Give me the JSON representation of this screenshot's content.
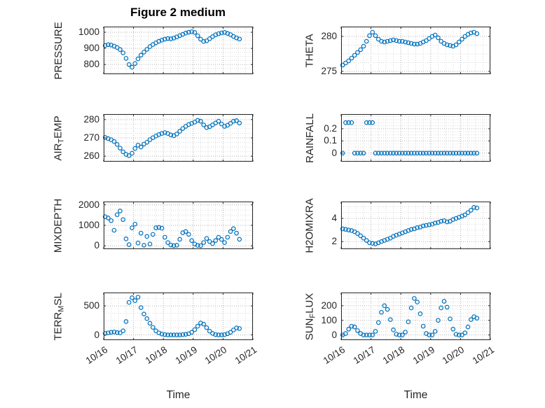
{
  "title": "Figure 2 medium",
  "chart_data": {
    "type": "scatter",
    "xlabel": "Time",
    "x_ticks": [
      "10/16",
      "10/17",
      "10/18",
      "10/19",
      "10/20",
      "10/21"
    ],
    "x_tick_positions": [
      0,
      1,
      2,
      3,
      4,
      5
    ],
    "xlim_days": [
      0,
      5
    ],
    "marker": {
      "shape": "open-circle",
      "color": "#0072BD"
    },
    "style": {
      "axis_color": "#262626",
      "grid_color": "#b2b2b2",
      "minor_grid_color": "#dadada"
    },
    "x_days": [
      0.05,
      0.15,
      0.25,
      0.35,
      0.45,
      0.55,
      0.65,
      0.75,
      0.85,
      0.95,
      1.05,
      1.15,
      1.25,
      1.35,
      1.45,
      1.55,
      1.65,
      1.75,
      1.85,
      1.95,
      2.05,
      2.15,
      2.25,
      2.35,
      2.45,
      2.55,
      2.65,
      2.75,
      2.85,
      2.95,
      3.05,
      3.15,
      3.25,
      3.35,
      3.45,
      3.55,
      3.65,
      3.75,
      3.85,
      3.95,
      4.05,
      4.15,
      4.25,
      4.35,
      4.45,
      4.55
    ],
    "subplots": [
      {
        "key": "pressure",
        "name": "PRESSURE",
        "ylabel_parts": {
          "pre": "PRESSURE",
          "sub": "",
          "post": ""
        },
        "yticks": [
          800,
          900,
          1000
        ],
        "ytick_labels": [
          "800",
          "900",
          "1000"
        ],
        "ylim": [
          740,
          1035
        ],
        "values": [
          918,
          923,
          921,
          914,
          905,
          893,
          872,
          838,
          800,
          783,
          806,
          835,
          858,
          877,
          894,
          911,
          924,
          934,
          944,
          951,
          957,
          961,
          959,
          964,
          971,
          979,
          987,
          995,
          1000,
          1003,
          999,
          978,
          957,
          943,
          947,
          960,
          973,
          984,
          991,
          996,
          999,
          993,
          985,
          974,
          965,
          958
        ]
      },
      {
        "key": "theta",
        "name": "THETA",
        "ylabel_parts": {
          "pre": "THETA",
          "sub": "",
          "post": ""
        },
        "yticks": [
          275,
          280
        ],
        "ytick_labels": [
          "275",
          "280"
        ],
        "ylim": [
          274.6,
          281.4
        ],
        "values": [
          275.9,
          276.2,
          276.5,
          276.9,
          277.3,
          277.7,
          278.1,
          278.6,
          279.3,
          280.1,
          280.6,
          280.1,
          279.6,
          279.3,
          279.2,
          279.3,
          279.4,
          279.5,
          279.4,
          279.3,
          279.3,
          279.2,
          279.1,
          279.0,
          278.9,
          278.9,
          279.0,
          279.2,
          279.4,
          279.7,
          280.0,
          280.2,
          279.8,
          279.3,
          279.0,
          278.8,
          278.7,
          278.6,
          278.8,
          279.2,
          279.6,
          280.0,
          280.3,
          280.5,
          280.6,
          280.4
        ]
      },
      {
        "key": "airtemp",
        "name": "AIR_TEMP",
        "ylabel_parts": {
          "pre": "AIR",
          "sub": "T",
          "post": "EMP"
        },
        "yticks": [
          260,
          270,
          280
        ],
        "ytick_labels": [
          "260",
          "270",
          "280"
        ],
        "ylim": [
          257,
          283
        ],
        "values": [
          270.2,
          269.6,
          269.0,
          268.0,
          266.4,
          264.4,
          262.4,
          261.0,
          260.3,
          261.6,
          264.2,
          266.0,
          265.0,
          266.6,
          267.6,
          269.0,
          270.1,
          271.0,
          271.8,
          272.4,
          272.9,
          272.4,
          271.6,
          271.2,
          272.1,
          273.6,
          275.1,
          276.3,
          277.3,
          277.9,
          278.6,
          279.6,
          279.1,
          277.1,
          275.6,
          276.1,
          277.1,
          278.1,
          279.1,
          277.6,
          276.3,
          276.9,
          277.9,
          279.1,
          279.4,
          278.1
        ]
      },
      {
        "key": "rainfall",
        "name": "RAINFALL",
        "ylabel_parts": {
          "pre": "RAINFALL",
          "sub": "",
          "post": ""
        },
        "yticks": [
          0,
          0.1,
          0.2
        ],
        "ytick_labels": [
          "0",
          "0.1",
          "0.2"
        ],
        "ylim": [
          -0.07,
          0.32
        ],
        "values": [
          0,
          0.25,
          0.25,
          0.25,
          0,
          0,
          0,
          0,
          0.25,
          0.25,
          0.25,
          0,
          0,
          0,
          0,
          0,
          0,
          0,
          0,
          0,
          0,
          0,
          0,
          0,
          0,
          0,
          0,
          0,
          0,
          0,
          0,
          0,
          0,
          0,
          0,
          0,
          0,
          0,
          0,
          0,
          0,
          0,
          0,
          0,
          0,
          0
        ]
      },
      {
        "key": "mixdepth",
        "name": "MIXDEPTH",
        "ylabel_parts": {
          "pre": "MIXDEPTH",
          "sub": "",
          "post": ""
        },
        "yticks": [
          0,
          1000,
          2000
        ],
        "ytick_labels": [
          "0",
          "1000",
          "2000"
        ],
        "ylim": [
          -160,
          2160
        ],
        "values": [
          1420,
          1360,
          1230,
          760,
          1520,
          1700,
          1280,
          340,
          60,
          880,
          1060,
          140,
          620,
          30,
          460,
          90,
          560,
          880,
          900,
          860,
          420,
          160,
          40,
          10,
          30,
          320,
          640,
          700,
          560,
          260,
          90,
          20,
          10,
          160,
          360,
          210,
          110,
          260,
          420,
          310,
          160,
          420,
          700,
          840,
          620,
          320
        ]
      },
      {
        "key": "h2omixra",
        "name": "H2OMIXRA",
        "ylabel_parts": {
          "pre": "H2OMIXRA",
          "sub": "",
          "post": ""
        },
        "yticks": [
          2,
          4
        ],
        "ytick_labels": [
          "2",
          "4"
        ],
        "ylim": [
          1.35,
          5.45
        ],
        "values": [
          3.1,
          3.05,
          3.0,
          2.95,
          2.85,
          2.7,
          2.5,
          2.3,
          2.1,
          1.9,
          1.85,
          1.8,
          1.9,
          2.0,
          2.1,
          2.2,
          2.3,
          2.45,
          2.55,
          2.65,
          2.75,
          2.85,
          2.95,
          3.05,
          3.1,
          3.2,
          3.25,
          3.35,
          3.4,
          3.45,
          3.5,
          3.6,
          3.65,
          3.75,
          3.8,
          3.7,
          3.75,
          3.9,
          4.0,
          4.1,
          4.2,
          4.3,
          4.5,
          4.7,
          4.95,
          4.9
        ]
      },
      {
        "key": "terr_msl",
        "name": "TERR_MSL",
        "ylabel_parts": {
          "pre": "TERR",
          "sub": "M",
          "post": "SL"
        },
        "yticks": [
          0,
          500
        ],
        "ytick_labels": [
          "0",
          "500"
        ],
        "ylim": [
          -90,
          730
        ],
        "values": [
          25,
          35,
          45,
          50,
          40,
          35,
          70,
          230,
          560,
          640,
          590,
          650,
          470,
          360,
          280,
          200,
          130,
          70,
          35,
          15,
          5,
          0,
          0,
          0,
          0,
          0,
          5,
          10,
          20,
          45,
          90,
          150,
          205,
          185,
          125,
          65,
          25,
          5,
          0,
          0,
          5,
          20,
          45,
          85,
          120,
          110
        ]
      },
      {
        "key": "sun_flux",
        "name": "SUN_FLUX",
        "ylabel_parts": {
          "pre": "SUN",
          "sub": "F",
          "post": "LUX"
        },
        "yticks": [
          0,
          100,
          200
        ],
        "ytick_labels": [
          "0",
          "100",
          "200"
        ],
        "ylim": [
          -35,
          290
        ],
        "values": [
          0,
          10,
          40,
          60,
          55,
          30,
          10,
          0,
          0,
          0,
          0,
          25,
          85,
          155,
          200,
          175,
          105,
          35,
          5,
          0,
          0,
          20,
          90,
          185,
          250,
          225,
          145,
          60,
          10,
          0,
          0,
          25,
          100,
          185,
          230,
          190,
          110,
          40,
          5,
          0,
          0,
          15,
          55,
          105,
          125,
          115
        ]
      }
    ]
  }
}
